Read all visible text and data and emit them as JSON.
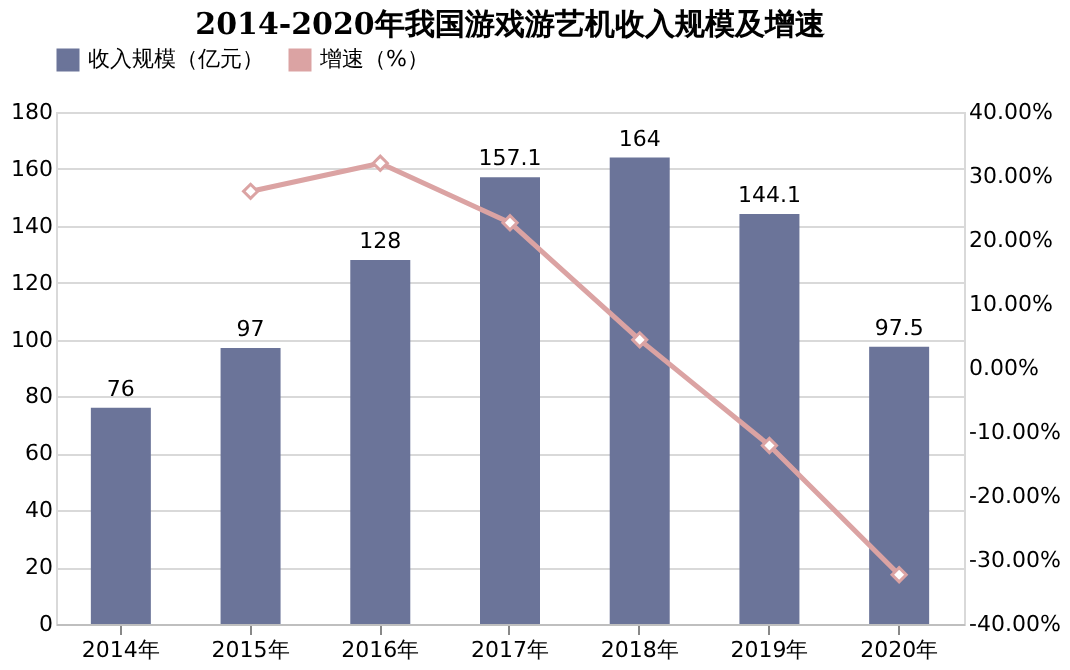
{
  "chart_data": {
    "type": "bar",
    "title": "2014-2020年我国游戏游艺机收入规模及增速",
    "categories": [
      "2014年",
      "2015年",
      "2016年",
      "2017年",
      "2018年",
      "2019年",
      "2020年"
    ],
    "series": [
      {
        "name": "收入规模（亿元）",
        "color": "#6b7499",
        "values": [
          76,
          97,
          128,
          157.1,
          164,
          144.1,
          97.5
        ],
        "value_labels": [
          "76",
          "97",
          "128",
          "157.1",
          "164",
          "144.1",
          "97.5"
        ]
      },
      {
        "name": "增速（%）",
        "type": "line",
        "axis": "y2",
        "color": "#dba3a3",
        "marker": "diamond",
        "values": [
          null,
          27.6,
          32.0,
          22.7,
          4.4,
          -12.1,
          -32.3
        ]
      }
    ],
    "ylim": [
      0,
      180
    ],
    "yticks": [
      0,
      20,
      40,
      60,
      80,
      100,
      120,
      140,
      160,
      180
    ],
    "y2lim": [
      -40,
      40
    ],
    "y2ticks": [
      {
        "value": -40,
        "label": "-40.00%"
      },
      {
        "value": -30,
        "label": "-30.00%"
      },
      {
        "value": -20,
        "label": "-20.00%"
      },
      {
        "value": -10,
        "label": "-10.00%"
      },
      {
        "value": 0,
        "label": "0.00%"
      },
      {
        "value": 10,
        "label": "10.00%"
      },
      {
        "value": 20,
        "label": "20.00%"
      },
      {
        "value": 30,
        "label": "30.00%"
      },
      {
        "value": 40,
        "label": "40.00%"
      }
    ],
    "grid": "y",
    "legend": "top"
  }
}
